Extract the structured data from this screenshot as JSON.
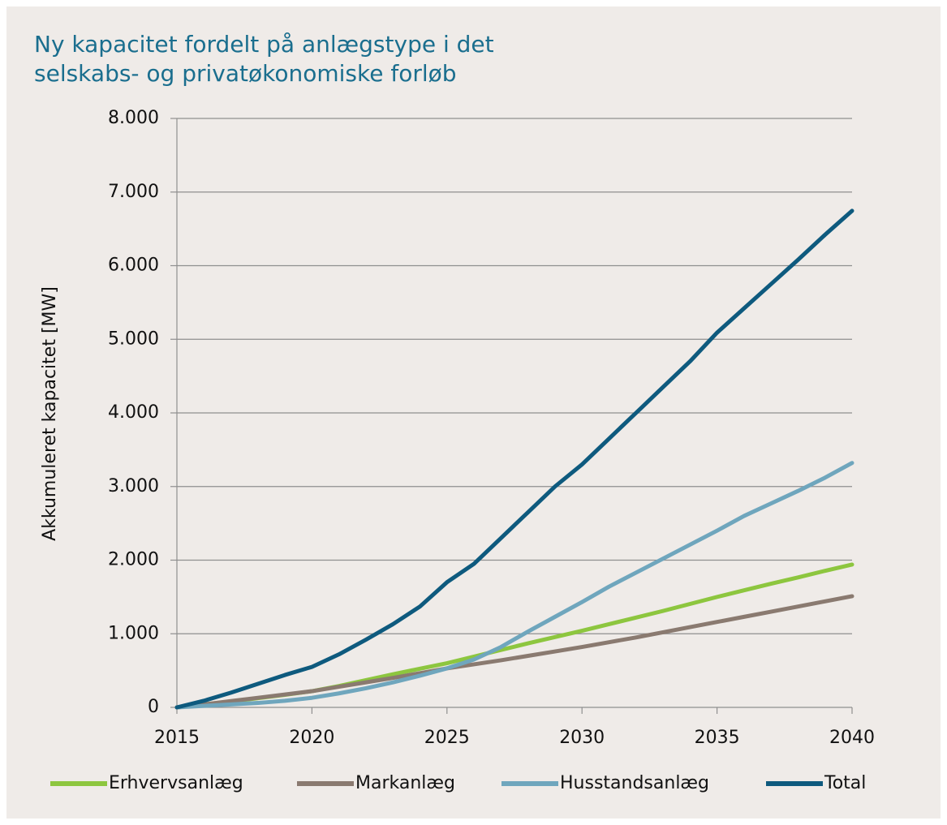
{
  "chart_data": {
    "type": "line",
    "title": "Ny kapacitet fordelt på anlægstype i det selskabs- og privatøkonomiske forløb",
    "ylabel": "Akkumuleret  kapacitet [MW]",
    "x": [
      2015,
      2016,
      2017,
      2018,
      2019,
      2020,
      2021,
      2022,
      2023,
      2024,
      2025,
      2026,
      2027,
      2028,
      2029,
      2030,
      2031,
      2032,
      2033,
      2034,
      2035,
      2036,
      2037,
      2038,
      2039,
      2040
    ],
    "series": [
      {
        "name": "Erhvervsanlæg",
        "color": "#8dc63f",
        "values": [
          0,
          40,
          80,
          125,
          170,
          220,
          290,
          370,
          450,
          525,
          600,
          690,
          780,
          870,
          955,
          1040,
          1130,
          1220,
          1310,
          1405,
          1500,
          1590,
          1680,
          1765,
          1855,
          1940
        ]
      },
      {
        "name": "Markanlæg",
        "color": "#8a7a70",
        "values": [
          0,
          40,
          85,
          130,
          175,
          220,
          280,
          340,
          400,
          465,
          530,
          585,
          640,
          700,
          760,
          820,
          885,
          950,
          1020,
          1090,
          1160,
          1230,
          1300,
          1370,
          1440,
          1510
        ]
      },
      {
        "name": "Husstandsanlæg",
        "color": "#6fa6bd",
        "values": [
          0,
          20,
          40,
          60,
          90,
          130,
          190,
          260,
          340,
          430,
          530,
          650,
          820,
          1030,
          1230,
          1430,
          1640,
          1830,
          2020,
          2210,
          2400,
          2600,
          2770,
          2940,
          3120,
          3320
        ]
      },
      {
        "name": "Total",
        "color": "#0e5a7e",
        "values": [
          0,
          90,
          200,
          320,
          440,
          550,
          720,
          920,
          1130,
          1370,
          1700,
          1950,
          2300,
          2650,
          3000,
          3300,
          3650,
          4000,
          4350,
          4700,
          5090,
          5420,
          5750,
          6080,
          6420,
          6745
        ]
      }
    ],
    "xlim": [
      2015,
      2040
    ],
    "xticks": [
      2015,
      2020,
      2025,
      2030,
      2035,
      2040
    ],
    "ylim": [
      0,
      8000
    ],
    "yticks": [
      0,
      {
        "value": 1000,
        "label": "1.000"
      },
      {
        "value": 2000,
        "label": "2.000"
      },
      {
        "value": 3000,
        "label": "3.000"
      },
      {
        "value": 4000,
        "label": "4.000"
      },
      {
        "value": 5000,
        "label": "5.000"
      },
      {
        "value": 6000,
        "label": "6.000"
      },
      {
        "value": 7000,
        "label": "7.000"
      },
      {
        "value": 8000,
        "label": "8.000"
      }
    ],
    "grid": true,
    "legend": "bottom"
  }
}
